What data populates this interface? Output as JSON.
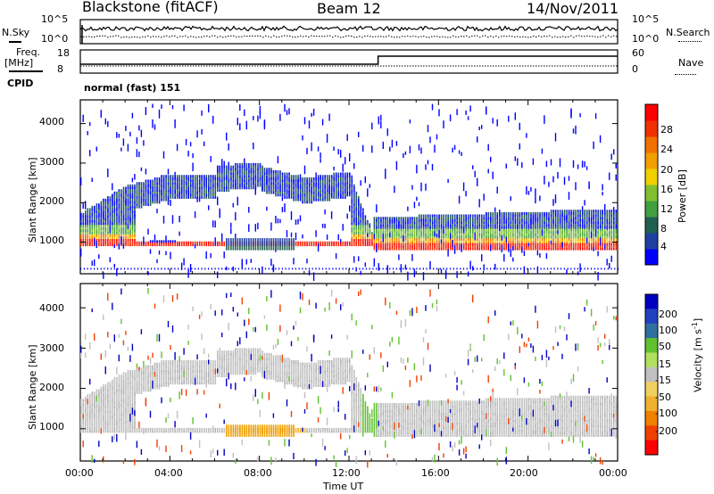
{
  "header": {
    "station": "Blackstone (fitACF)",
    "beam": "Beam 12",
    "date": "14/Nov/2011"
  },
  "top_panels": {
    "nsky_label": "N.Sky",
    "nsky_ticks": [
      "10^5",
      "10^0"
    ],
    "nsearch_label": "N.Search",
    "nsearch_ticks": [
      "10^5",
      "10^0"
    ],
    "freq_label": "Freq.",
    "freq_unit": "[MHz]",
    "freq_ticks": [
      "18",
      "8"
    ],
    "nave_label": "Nave",
    "nave_ticks": [
      "60",
      "0"
    ],
    "cpid_label": "CPID",
    "cpid_value": "normal (fast) 151"
  },
  "chart_data": [
    {
      "type": "heatmap",
      "name": "power",
      "ylabel": "Slant Range [km]",
      "yticks": [
        "1000",
        "2000",
        "3000",
        "4000"
      ],
      "ylim": [
        200,
        4600
      ],
      "xlim": [
        0,
        24
      ],
      "colorbar": {
        "label": "Power [dB]",
        "ticks": [
          "4",
          "8",
          "12",
          "16",
          "20",
          "24",
          "28"
        ],
        "colors": [
          "#0000ff",
          "#2040a0",
          "#206050",
          "#40a040",
          "#80c030",
          "#f0d000",
          "#f0a000",
          "#f07000",
          "#f03000",
          "#ff0000"
        ]
      },
      "features": [
        {
          "region": "main band",
          "x": [
            0,
            13
          ],
          "range_km": [
            900,
            2500
          ]
        },
        {
          "region": "post-12UT band",
          "x": [
            13,
            24
          ],
          "range_km": [
            800,
            1600
          ]
        }
      ]
    },
    {
      "type": "heatmap",
      "name": "velocity",
      "ylabel": "Slant Range [km]",
      "yticks": [
        "1000",
        "2000",
        "3000",
        "4000"
      ],
      "ylim": [
        200,
        4600
      ],
      "xlim": [
        0,
        24
      ],
      "colorbar": {
        "label": "Velocity [m s-1]",
        "label_main": "Velocity [m s",
        "label_sup": "-1",
        "label_end": "]",
        "ticks": [
          "200",
          "100",
          "50",
          "15",
          "-15",
          "-50",
          "-100",
          "-200"
        ],
        "colors": [
          "#0000c0",
          "#2040c0",
          "#3070a0",
          "#60c030",
          "#b0e060",
          "#c0c0c0",
          "#f0d060",
          "#f0b030",
          "#f08000",
          "#f04000",
          "#ff0000"
        ]
      }
    }
  ],
  "xaxis": {
    "ticks": [
      "00:00",
      "04:00",
      "08:00",
      "12:00",
      "16:00",
      "20:00",
      "00:00"
    ],
    "label": "Time UT"
  }
}
